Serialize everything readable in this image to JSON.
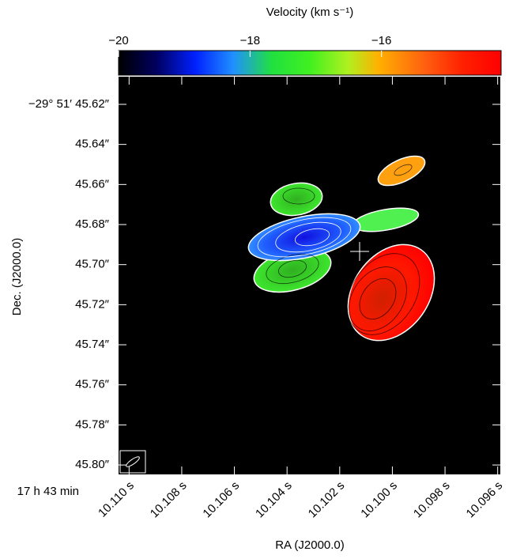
{
  "chart_data": {
    "type": "velocity-map",
    "colorbar_label": "Velocity (km s⁻¹)",
    "clim": [
      -20,
      -14.18
    ],
    "cticks": [
      {
        "value": -20,
        "label": "−20"
      },
      {
        "value": -18,
        "label": "−18"
      },
      {
        "value": -16,
        "label": "−16"
      }
    ],
    "x_label": "RA (J2000.0)",
    "x_prefix": "17 h 43 min",
    "xlim": [
      10.1104,
      10.0959
    ],
    "xticks": [
      {
        "value": 10.11,
        "label": "10.110 s"
      },
      {
        "value": 10.108,
        "label": "10.108 s"
      },
      {
        "value": 10.106,
        "label": "10.106 s"
      },
      {
        "value": 10.104,
        "label": "10.104 s"
      },
      {
        "value": 10.102,
        "label": "10.102 s"
      },
      {
        "value": 10.1,
        "label": "10.100 s"
      },
      {
        "value": 10.098,
        "label": "10.098 s"
      },
      {
        "value": 10.096,
        "label": "10.096 s"
      }
    ],
    "y_label": "Dec. (J2000.0)",
    "ylim": [
      45.8047,
      45.6062
    ],
    "yticks": [
      {
        "value": 45.62,
        "label": "−29° 51′ 45.62″"
      },
      {
        "value": 45.64,
        "label": "45.64″"
      },
      {
        "value": 45.66,
        "label": "45.66″"
      },
      {
        "value": 45.68,
        "label": "45.68″"
      },
      {
        "value": 45.7,
        "label": "45.70″"
      },
      {
        "value": 45.72,
        "label": "45.72″"
      },
      {
        "value": 45.74,
        "label": "45.74″"
      },
      {
        "value": 45.76,
        "label": "45.76″"
      },
      {
        "value": 45.78,
        "label": "45.78″"
      },
      {
        "value": 45.8,
        "label": "45.80″"
      }
    ]
  }
}
